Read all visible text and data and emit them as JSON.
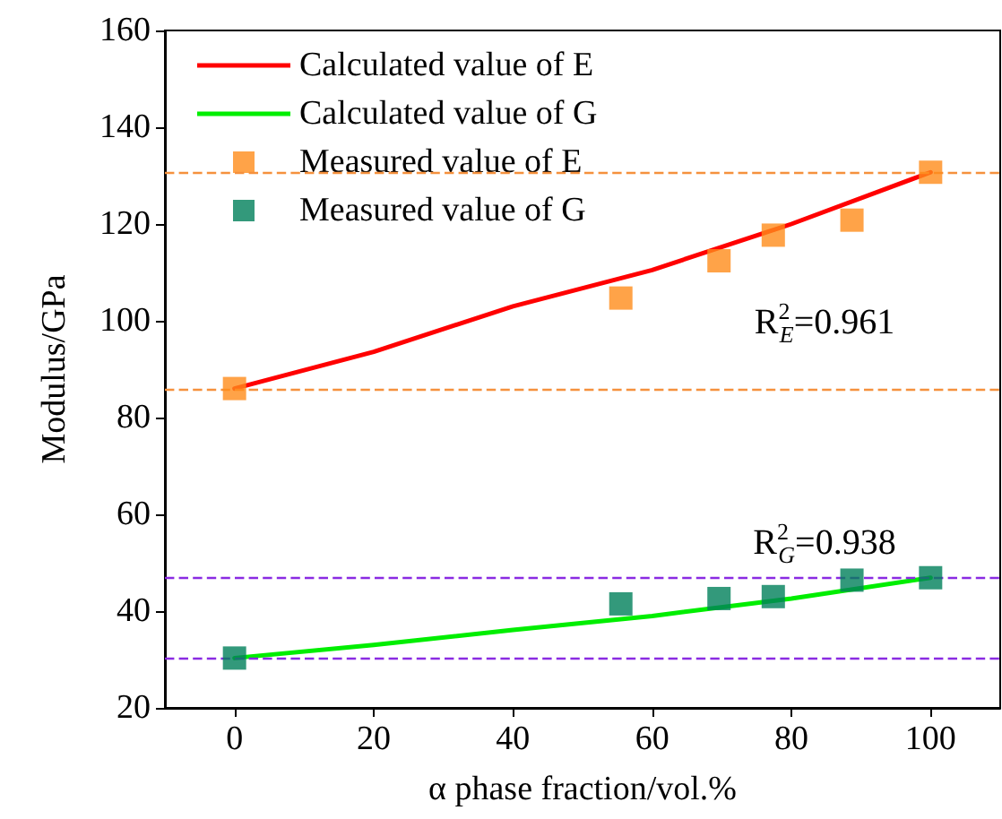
{
  "chart_data": {
    "type": "scatter",
    "xlabel": "α phase fraction/vol.%",
    "ylabel": "Modulus/GPa",
    "xlim": [
      -10,
      110
    ],
    "xticks": [
      0,
      20,
      40,
      60,
      80,
      100
    ],
    "ylim": [
      20,
      160
    ],
    "yticks": [
      20,
      40,
      60,
      80,
      100,
      120,
      140,
      160
    ],
    "grid": false,
    "legend": "top left",
    "marker": "square",
    "series": [
      {
        "name": "Calculated value of E",
        "type": "line",
        "marker": "none",
        "line_style": "solid",
        "color": "#ff0000",
        "x": [
          0,
          20,
          40,
          60,
          80,
          100
        ],
        "values": [
          86,
          93.6,
          103,
          110.5,
          120,
          130.7
        ]
      },
      {
        "name": "Calculated value of G",
        "type": "line",
        "marker": "none",
        "line_style": "solid",
        "color": "#00ee00",
        "x": [
          0,
          20,
          40,
          60,
          80,
          100
        ],
        "values": [
          30.3,
          33,
          36.1,
          39,
          42.6,
          46.9
        ]
      },
      {
        "name": "Measured value of E",
        "color": "#ff8c1a",
        "x": [
          0,
          55.5,
          69.6,
          77.4,
          88.7,
          100
        ],
        "values": [
          86,
          104.7,
          112.4,
          117.7,
          120.8,
          130.7
        ]
      },
      {
        "name": "Measured value of G",
        "color": "#00805a",
        "x": [
          0,
          55.5,
          69.6,
          77.4,
          88.7,
          100
        ],
        "values": [
          30.3,
          41.5,
          42.6,
          43,
          46.4,
          46.9
        ]
      }
    ],
    "ref_lines": [
      {
        "axis": "y",
        "value": 130.7,
        "color": "#f5913d",
        "line_style": "dashed"
      },
      {
        "axis": "y",
        "value": 86,
        "color": "#f5913d",
        "line_style": "dashed"
      },
      {
        "axis": "y",
        "value": 46.8,
        "color": "#8a2be2",
        "line_style": "dashed"
      },
      {
        "axis": "y",
        "value": 30.3,
        "color": "#8a2be2",
        "line_style": "dashed"
      }
    ],
    "annotations": [
      "R$^{2}$$_{E}$=0.961",
      "R$^{2}$$_{G}$=0.938"
    ]
  }
}
